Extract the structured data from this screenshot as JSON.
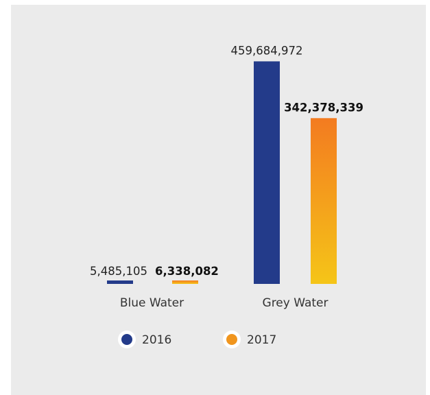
{
  "chart_data": {
    "type": "bar",
    "categories": [
      "Blue Water",
      "Grey Water"
    ],
    "series": [
      {
        "name": "2016",
        "values": [
          5485105,
          459684972
        ],
        "labels": [
          "5,485,105",
          "459,684,972"
        ],
        "bold_labels": false,
        "color": "#233b8a"
      },
      {
        "name": "2017",
        "values": [
          6338082,
          342378339
        ],
        "labels": [
          "6,338,082",
          "342,378,339"
        ],
        "bold_labels": true,
        "gradient": [
          "#f37b20",
          "#f5c518"
        ],
        "color": "#f0951e"
      }
    ],
    "ylim": [
      0,
      500000000
    ],
    "grid": false,
    "legend_position": "bottom"
  },
  "colors": {
    "panel_background": "#ebebeb",
    "series_2016": "#233b8a",
    "series_2017_top": "#f37b20",
    "series_2017_bottom": "#f5c518"
  }
}
